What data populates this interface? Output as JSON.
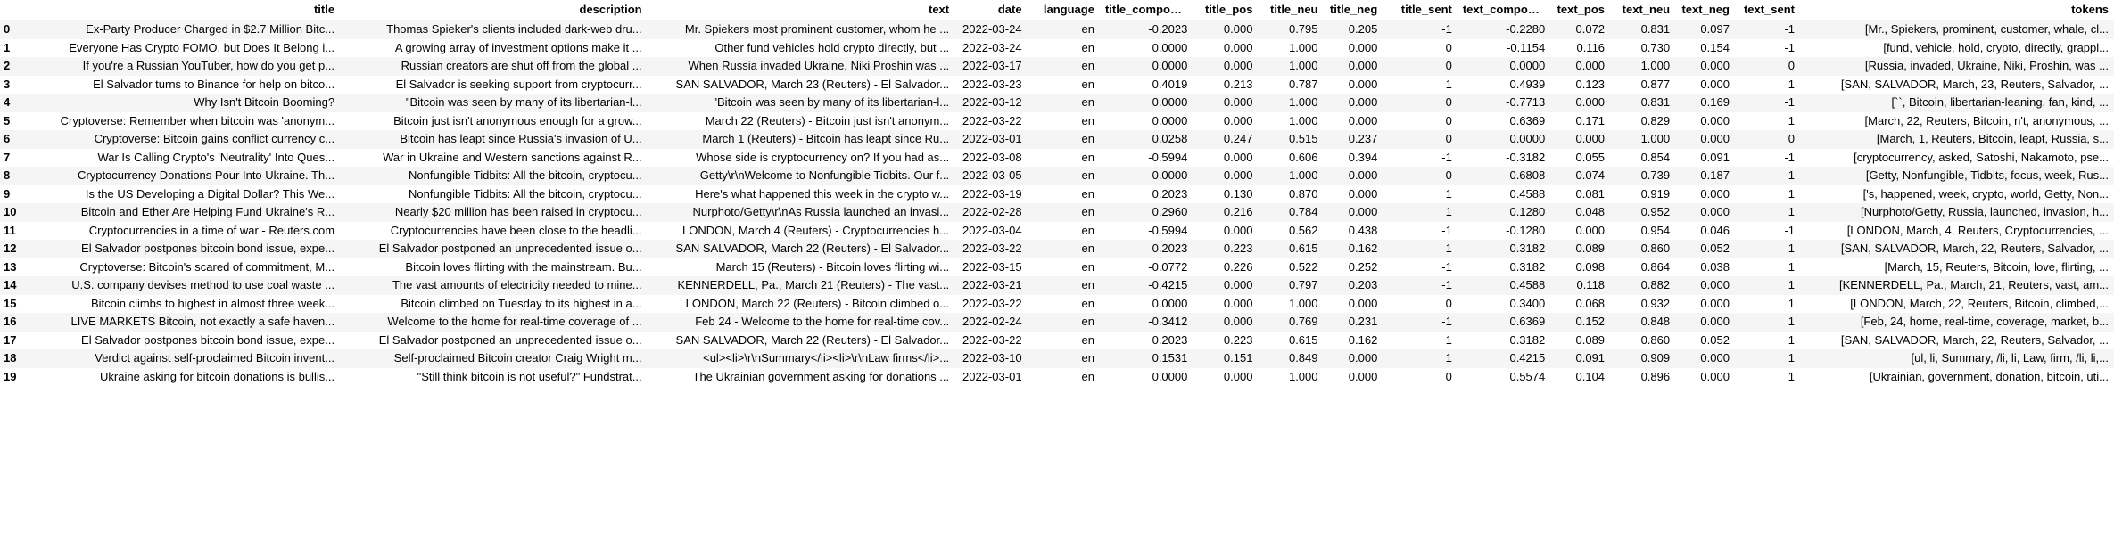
{
  "columns": [
    "",
    "title",
    "description",
    "text",
    "date",
    "language",
    "title_compound",
    "title_pos",
    "title_neu",
    "title_neg",
    "title_sent",
    "text_compound",
    "text_pos",
    "text_neu",
    "text_neg",
    "text_sent",
    "tokens"
  ],
  "rows": [
    [
      "0",
      "Ex-Party Producer Charged in $2.7 Million Bitc...",
      "Thomas Spieker's clients included dark-web dru...",
      "Mr. Spiekers most prominent customer, whom he ...",
      "2022-03-24",
      "en",
      "-0.2023",
      "0.000",
      "0.795",
      "0.205",
      "-1",
      "-0.2280",
      "0.072",
      "0.831",
      "0.097",
      "-1",
      "[Mr., Spiekers, prominent, customer, whale, cl..."
    ],
    [
      "1",
      "Everyone Has Crypto FOMO, but Does It Belong i...",
      "A growing array of investment options make it ...",
      "Other fund vehicles hold crypto directly, but ...",
      "2022-03-24",
      "en",
      "0.0000",
      "0.000",
      "1.000",
      "0.000",
      "0",
      "-0.1154",
      "0.116",
      "0.730",
      "0.154",
      "-1",
      "[fund, vehicle, hold, crypto, directly, grappl..."
    ],
    [
      "2",
      "If you're a Russian YouTuber, how do you get p...",
      "Russian creators are shut off from the global ...",
      "When Russia invaded Ukraine, Niki Proshin was ...",
      "2022-03-17",
      "en",
      "0.0000",
      "0.000",
      "1.000",
      "0.000",
      "0",
      "0.0000",
      "0.000",
      "1.000",
      "0.000",
      "0",
      "[Russia, invaded, Ukraine, Niki, Proshin, was ..."
    ],
    [
      "3",
      "El Salvador turns to Binance for help on bitco...",
      "El Salvador is seeking support from cryptocurr...",
      "SAN SALVADOR, March 23 (Reuters) - El Salvador...",
      "2022-03-23",
      "en",
      "0.4019",
      "0.213",
      "0.787",
      "0.000",
      "1",
      "0.4939",
      "0.123",
      "0.877",
      "0.000",
      "1",
      "[SAN, SALVADOR, March, 23, Reuters, Salvador, ..."
    ],
    [
      "4",
      "Why Isn't Bitcoin Booming?",
      "\"Bitcoin was seen by many of its libertarian-l...",
      "\"Bitcoin was seen by many of its libertarian-l...",
      "2022-03-12",
      "en",
      "0.0000",
      "0.000",
      "1.000",
      "0.000",
      "0",
      "-0.7713",
      "0.000",
      "0.831",
      "0.169",
      "-1",
      "[``, Bitcoin, libertarian-leaning, fan, kind, ..."
    ],
    [
      "5",
      "Cryptoverse: Remember when bitcoin was 'anonym...",
      "Bitcoin just isn't anonymous enough for a grow...",
      "March 22 (Reuters) - Bitcoin just isn't anonym...",
      "2022-03-22",
      "en",
      "0.0000",
      "0.000",
      "1.000",
      "0.000",
      "0",
      "0.6369",
      "0.171",
      "0.829",
      "0.000",
      "1",
      "[March, 22, Reuters, Bitcoin, n't, anonymous, ..."
    ],
    [
      "6",
      "Cryptoverse: Bitcoin gains conflict currency c...",
      "Bitcoin has leapt since Russia's invasion of U...",
      "March 1 (Reuters) - Bitcoin has leapt since Ru...",
      "2022-03-01",
      "en",
      "0.0258",
      "0.247",
      "0.515",
      "0.237",
      "0",
      "0.0000",
      "0.000",
      "1.000",
      "0.000",
      "0",
      "[March, 1, Reuters, Bitcoin, leapt, Russia, s..."
    ],
    [
      "7",
      "War Is Calling Crypto's 'Neutrality' Into Ques...",
      "War in Ukraine and Western sanctions against R...",
      "Whose side is cryptocurrency on? If you had as...",
      "2022-03-08",
      "en",
      "-0.5994",
      "0.000",
      "0.606",
      "0.394",
      "-1",
      "-0.3182",
      "0.055",
      "0.854",
      "0.091",
      "-1",
      "[cryptocurrency, asked, Satoshi, Nakamoto, pse..."
    ],
    [
      "8",
      "Cryptocurrency Donations Pour Into Ukraine. Th...",
      "Nonfungible Tidbits: All the bitcoin, cryptocu...",
      "Getty\\r\\nWelcome to Nonfungible Tidbits. Our f...",
      "2022-03-05",
      "en",
      "0.0000",
      "0.000",
      "1.000",
      "0.000",
      "0",
      "-0.6808",
      "0.074",
      "0.739",
      "0.187",
      "-1",
      "[Getty, Nonfungible, Tidbits, focus, week, Rus..."
    ],
    [
      "9",
      "Is the US Developing a Digital Dollar? This We...",
      "Nonfungible Tidbits: All the bitcoin, cryptocu...",
      "Here's what happened this week in the crypto w...",
      "2022-03-19",
      "en",
      "0.2023",
      "0.130",
      "0.870",
      "0.000",
      "1",
      "0.4588",
      "0.081",
      "0.919",
      "0.000",
      "1",
      "['s, happened, week, crypto, world, Getty, Non..."
    ],
    [
      "10",
      "Bitcoin and Ether Are Helping Fund Ukraine's R...",
      "Nearly $20 million has been raised in cryptocu...",
      "Nurphoto/Getty\\r\\nAs Russia launched an invasi...",
      "2022-02-28",
      "en",
      "0.2960",
      "0.216",
      "0.784",
      "0.000",
      "1",
      "0.1280",
      "0.048",
      "0.952",
      "0.000",
      "1",
      "[Nurphoto/Getty, Russia, launched, invasion, h..."
    ],
    [
      "11",
      "Cryptocurrencies in a time of war - Reuters.com",
      "Cryptocurrencies have been close to the headli...",
      "LONDON, March 4 (Reuters) - Cryptocurrencies h...",
      "2022-03-04",
      "en",
      "-0.5994",
      "0.000",
      "0.562",
      "0.438",
      "-1",
      "-0.1280",
      "0.000",
      "0.954",
      "0.046",
      "-1",
      "[LONDON, March, 4, Reuters, Cryptocurrencies, ..."
    ],
    [
      "12",
      "El Salvador postpones bitcoin bond issue, expe...",
      "El Salvador postponed an unprecedented issue o...",
      "SAN SALVADOR, March 22 (Reuters) - El Salvador...",
      "2022-03-22",
      "en",
      "0.2023",
      "0.223",
      "0.615",
      "0.162",
      "1",
      "0.3182",
      "0.089",
      "0.860",
      "0.052",
      "1",
      "[SAN, SALVADOR, March, 22, Reuters, Salvador, ..."
    ],
    [
      "13",
      "Cryptoverse: Bitcoin's scared of commitment, M...",
      "Bitcoin loves flirting with the mainstream. Bu...",
      "March 15 (Reuters) - Bitcoin loves flirting wi...",
      "2022-03-15",
      "en",
      "-0.0772",
      "0.226",
      "0.522",
      "0.252",
      "-1",
      "0.3182",
      "0.098",
      "0.864",
      "0.038",
      "1",
      "[March, 15, Reuters, Bitcoin, love, flirting, ..."
    ],
    [
      "14",
      "U.S. company devises method to use coal waste ...",
      "The vast amounts of electricity needed to mine...",
      "KENNERDELL, Pa., March 21 (Reuters) - The vast...",
      "2022-03-21",
      "en",
      "-0.4215",
      "0.000",
      "0.797",
      "0.203",
      "-1",
      "0.4588",
      "0.118",
      "0.882",
      "0.000",
      "1",
      "[KENNERDELL, Pa., March, 21, Reuters, vast, am..."
    ],
    [
      "15",
      "Bitcoin climbs to highest in almost three week...",
      "Bitcoin climbed on Tuesday to its highest in a...",
      "LONDON, March 22 (Reuters) - Bitcoin climbed o...",
      "2022-03-22",
      "en",
      "0.0000",
      "0.000",
      "1.000",
      "0.000",
      "0",
      "0.3400",
      "0.068",
      "0.932",
      "0.000",
      "1",
      "[LONDON, March, 22, Reuters, Bitcoin, climbed,..."
    ],
    [
      "16",
      "LIVE MARKETS Bitcoin, not exactly a safe haven...",
      "Welcome to the home for real-time coverage of ...",
      "Feb 24 - Welcome to the home for real-time cov...",
      "2022-02-24",
      "en",
      "-0.3412",
      "0.000",
      "0.769",
      "0.231",
      "-1",
      "0.6369",
      "0.152",
      "0.848",
      "0.000",
      "1",
      "[Feb, 24, home, real-time, coverage, market, b..."
    ],
    [
      "17",
      "El Salvador postpones bitcoin bond issue, expe...",
      "El Salvador postponed an unprecedented issue o...",
      "SAN SALVADOR, March 22 (Reuters) - El Salvador...",
      "2022-03-22",
      "en",
      "0.2023",
      "0.223",
      "0.615",
      "0.162",
      "1",
      "0.3182",
      "0.089",
      "0.860",
      "0.052",
      "1",
      "[SAN, SALVADOR, March, 22, Reuters, Salvador, ..."
    ],
    [
      "18",
      "Verdict against self-proclaimed Bitcoin invent...",
      "Self-proclaimed Bitcoin creator Craig Wright m...",
      "<ul><li>\\r\\nSummary</li><li>\\r\\nLaw firms</li>...",
      "2022-03-10",
      "en",
      "0.1531",
      "0.151",
      "0.849",
      "0.000",
      "1",
      "0.4215",
      "0.091",
      "0.909",
      "0.000",
      "1",
      "[ul, li, Summary, /li, li, Law, firm, /li, li,..."
    ],
    [
      "19",
      "Ukraine asking for bitcoin donations is bullis...",
      "\"Still think bitcoin is not useful?\" Fundstrat...",
      "The Ukrainian government asking for donations ...",
      "2022-03-01",
      "en",
      "0.0000",
      "0.000",
      "1.000",
      "0.000",
      "0",
      "0.5574",
      "0.104",
      "0.896",
      "0.000",
      "1",
      "[Ukrainian, government, donation, bitcoin, uti..."
    ]
  ]
}
